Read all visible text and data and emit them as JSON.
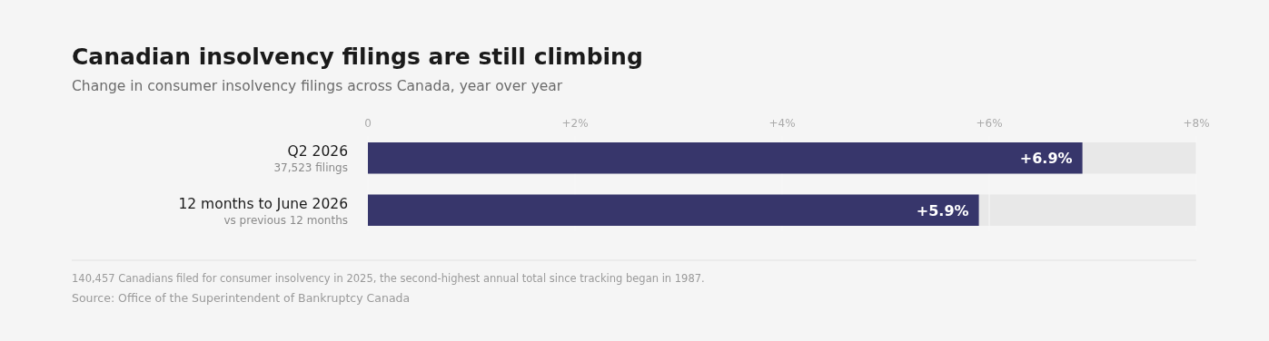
{
  "chart_data": {
    "type": "bar",
    "orientation": "horizontal",
    "title": "Canadian insolvency filings are still climbing",
    "subtitle": "Change in consumer insolvency filings across Canada, year over year",
    "categories": [
      "Q2 2026\n37,523 filings",
      "12 months to June 2026\nvs previous 12 months"
    ],
    "values": [
      6.9,
      5.9
    ],
    "value_labels": [
      "+6.9%",
      "+5.9%"
    ],
    "color": "#37366b",
    "xlim": [
      0,
      8
    ],
    "xticks": [
      0,
      {
        "value": 2,
        "label": "+2%"
      },
      {
        "value": 4,
        "label": "+4%"
      },
      {
        "value": 6,
        "label": "+6%"
      },
      {
        "value": 8,
        "label": "+8%"
      }
    ],
    "grid": "x",
    "annotations": [
      "140,457 Canadians filed for consumer insolvency in 2025, the second-highest annual total since tracking began in 1987.",
      "Source: Office of the Superintendent of Bankruptcy Canada"
    ]
  }
}
